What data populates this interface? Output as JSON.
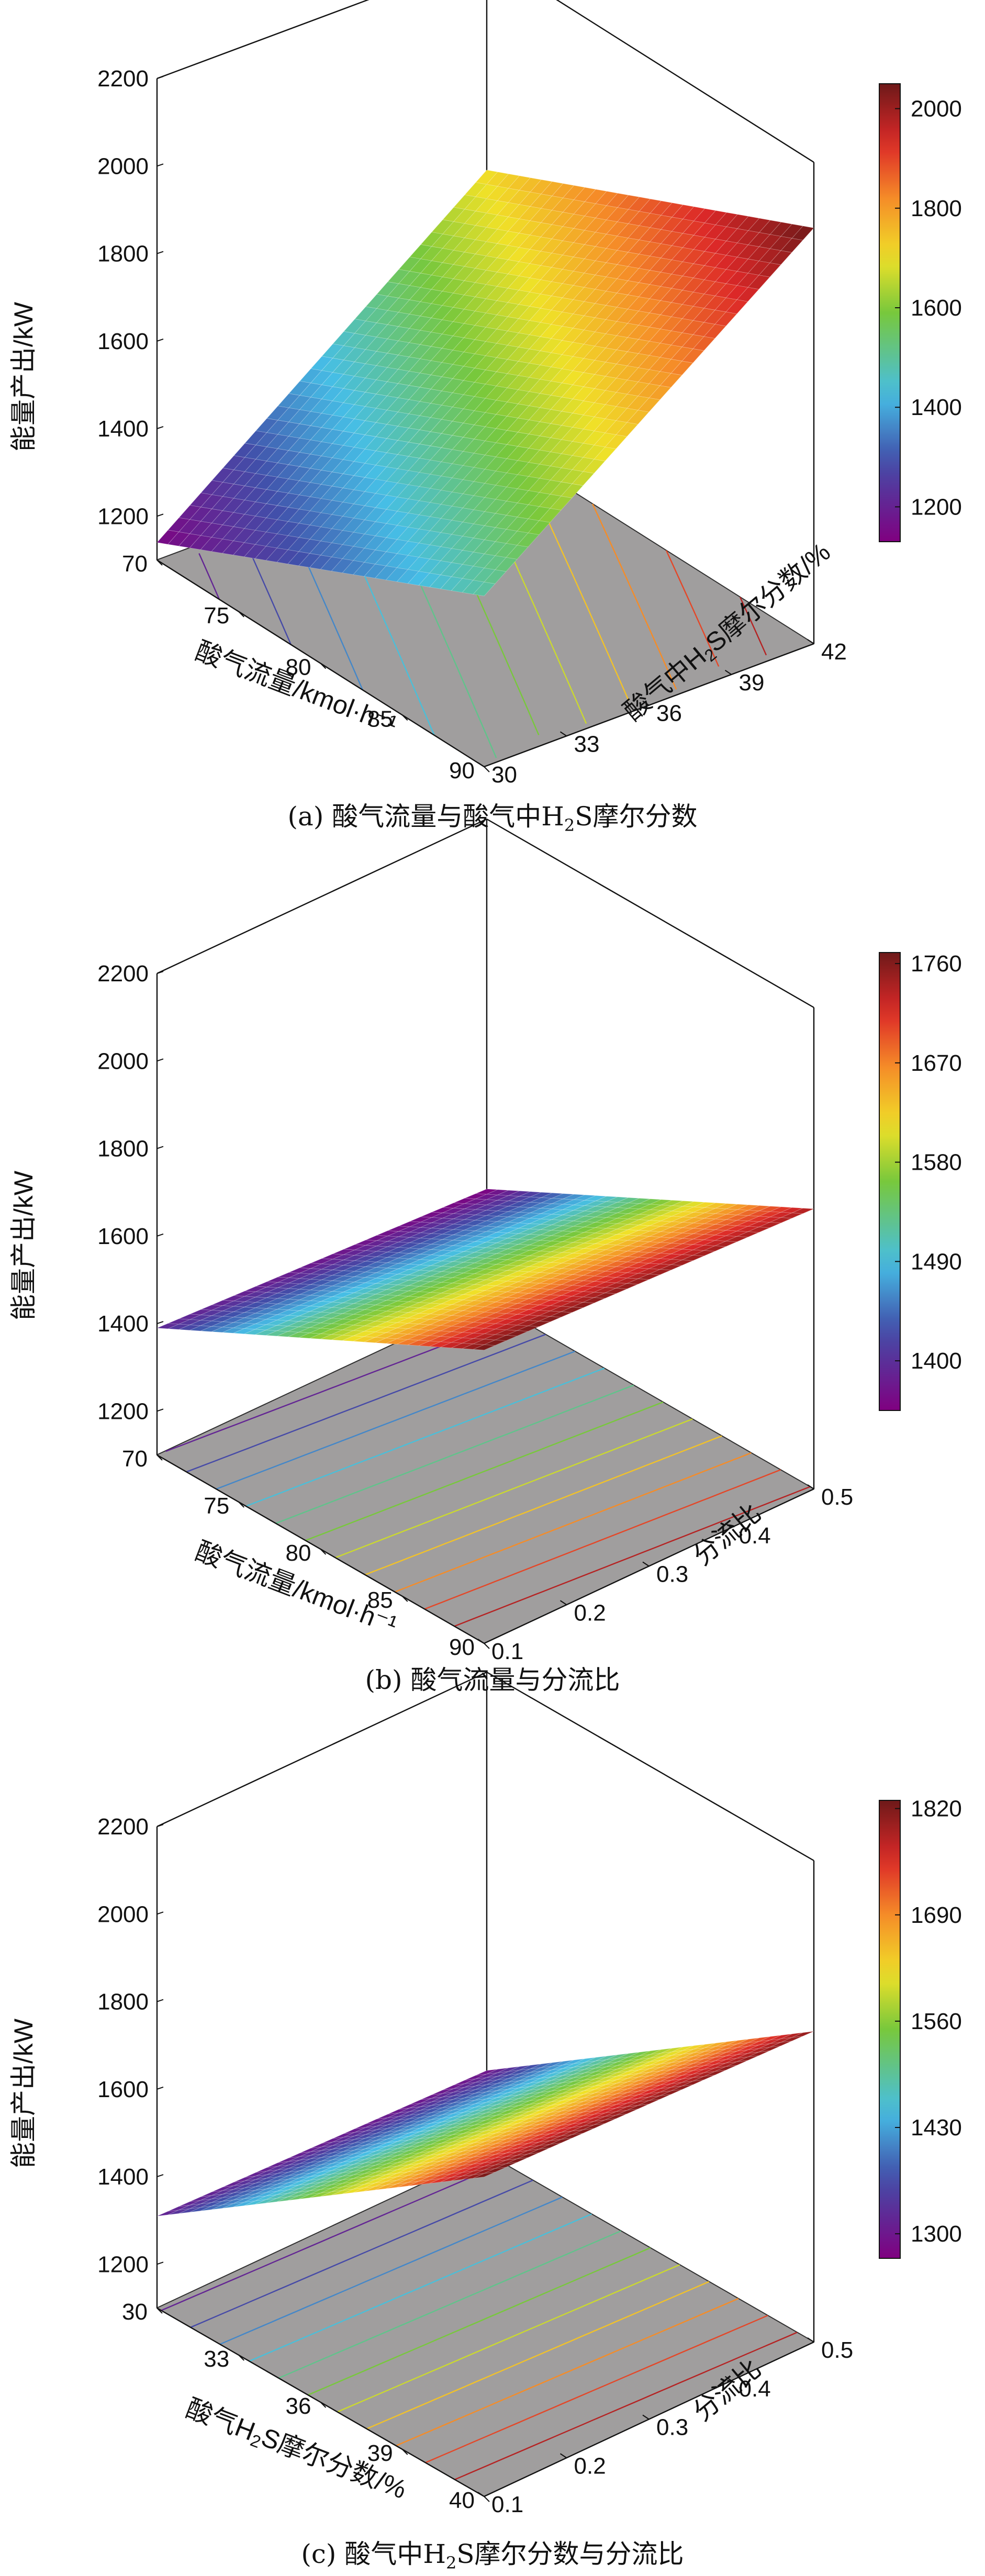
{
  "chart_data": [
    {
      "type": "surface3d",
      "caption": {
        "prefix": "(a) 酸气流量与酸气中H",
        "sub": "2",
        "suffix": "S摩尔分数"
      },
      "zlabel": "能量产出/kW",
      "xlabel": "酸气流量/kmol·h⁻¹",
      "ylabel": {
        "prefix": "酸气中H",
        "sub": "2",
        "suffix": "S摩尔分数/%"
      },
      "x_ticks": [
        "70",
        "75",
        "80",
        "85",
        "90"
      ],
      "y_ticks": [
        "30",
        "33",
        "36",
        "39",
        "42"
      ],
      "z_ticks": [
        "1200",
        "1400",
        "1600",
        "1800",
        "2000",
        "2200"
      ],
      "colorbar_ticks": [
        "1200",
        "1400",
        "1600",
        "1800",
        "2000"
      ],
      "xlim": [
        70,
        90
      ],
      "ylim": [
        30,
        42
      ],
      "zlim": [
        1100,
        2200
      ],
      "clim": [
        1130,
        2050
      ],
      "surface_corners": {
        "x_min_y_min": 1140,
        "x_max_y_min": 1490,
        "x_min_y_max": 1710,
        "x_max_y_max": 2050
      }
    },
    {
      "type": "surface3d",
      "caption": {
        "prefix": "(b) 酸气流量与分流比",
        "sub": "",
        "suffix": ""
      },
      "zlabel": "能量产出/kW",
      "xlabel": "酸气流量/kmol·h⁻¹",
      "ylabel": {
        "prefix": "分流比",
        "sub": "",
        "suffix": ""
      },
      "x_ticks": [
        "70",
        "75",
        "80",
        "85",
        "90"
      ],
      "y_ticks": [
        "0.1",
        "0.2",
        "0.3",
        "0.4",
        "0.5"
      ],
      "z_ticks": [
        "1200",
        "1400",
        "1600",
        "1800",
        "2000",
        "2200"
      ],
      "colorbar_ticks": [
        "1400",
        "1490",
        "1580",
        "1670",
        "1760"
      ],
      "xlim": [
        70,
        90
      ],
      "ylim": [
        0.1,
        0.5
      ],
      "zlim": [
        1100,
        2200
      ],
      "clim": [
        1355,
        1770
      ],
      "surface_corners": {
        "x_min_y_min": 1390,
        "x_max_y_min": 1770,
        "x_min_y_max": 1355,
        "x_max_y_max": 1740
      }
    },
    {
      "type": "surface3d",
      "caption": {
        "prefix": "(c) 酸气中H",
        "sub": "2",
        "suffix": "S摩尔分数与分流比"
      },
      "zlabel": "能量产出/kW",
      "xlabel": {
        "prefix": "酸气H",
        "sub": "2",
        "suffix": "S摩尔分数/%"
      },
      "ylabel": {
        "prefix": "分流比",
        "sub": "",
        "suffix": ""
      },
      "x_ticks": [
        "30",
        "33",
        "36",
        "39",
        "40"
      ],
      "y_ticks": [
        "0.1",
        "0.2",
        "0.3",
        "0.4",
        "0.5"
      ],
      "z_ticks": [
        "1200",
        "1400",
        "1600",
        "1800",
        "2000",
        "2200"
      ],
      "colorbar_ticks": [
        "1300",
        "1430",
        "1560",
        "1690",
        "1820"
      ],
      "xlim": [
        30,
        40
      ],
      "ylim": [
        0.1,
        0.5
      ],
      "zlim": [
        1100,
        2200
      ],
      "clim": [
        1270,
        1830
      ],
      "surface_corners": {
        "x_min_y_min": 1310,
        "x_max_y_min": 1830,
        "x_min_y_max": 1290,
        "x_max_y_max": 1810
      }
    }
  ]
}
